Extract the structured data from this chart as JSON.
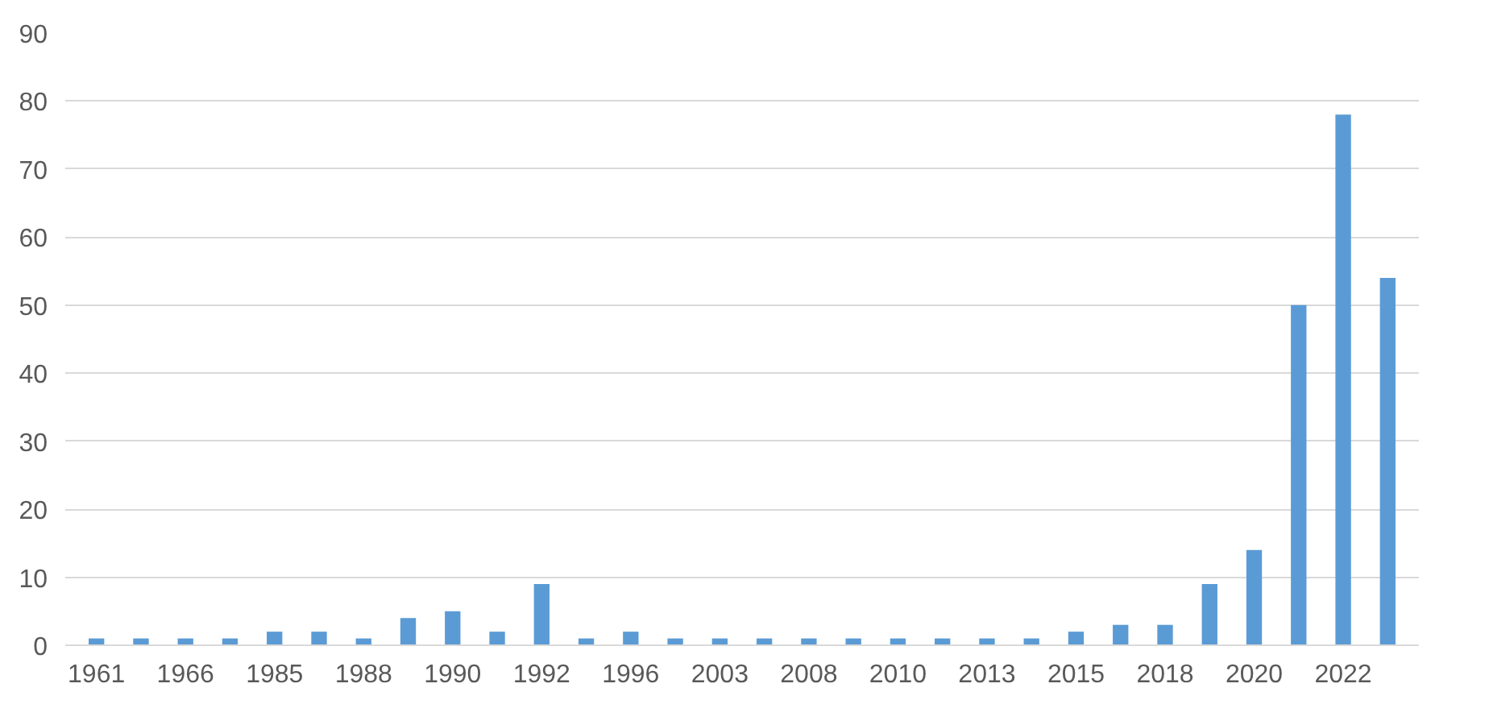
{
  "chart_data": {
    "type": "bar",
    "categories": [
      "1961",
      null,
      "1966",
      null,
      "1985",
      null,
      "1988",
      null,
      "1990",
      null,
      "1992",
      null,
      "1996",
      null,
      "2003",
      null,
      "2008",
      null,
      "2010",
      null,
      "2013",
      null,
      "2015",
      null,
      "2018",
      null,
      "2020",
      null,
      "2022",
      null
    ],
    "values": [
      1,
      1,
      1,
      1,
      2,
      2,
      1,
      4,
      5,
      2,
      9,
      1,
      2,
      1,
      1,
      1,
      1,
      1,
      1,
      1,
      1,
      1,
      2,
      3,
      3,
      9,
      14,
      50,
      78,
      54
    ],
    "color": "#5b9bd5",
    "ylim": [
      0,
      90
    ],
    "yticks": [
      0,
      10,
      20,
      30,
      40,
      50,
      60,
      70,
      80,
      90
    ],
    "grid": "y"
  }
}
